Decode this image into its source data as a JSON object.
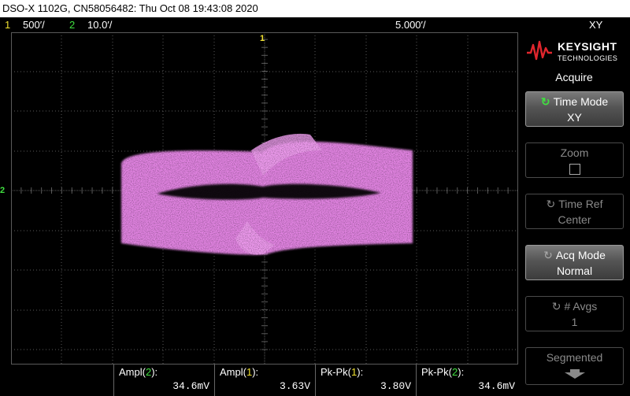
{
  "title": "DSO-X 1102G, CN58056482: Thu Oct 08 19:43:08 2020",
  "status": {
    "ch1_num": "1",
    "ch1_scale": "500′/",
    "ch2_num": "2",
    "ch2_scale": "10.0′/",
    "timebase": "5.000′/",
    "mode": "XY"
  },
  "markers": {
    "ch1": "1",
    "ch2": "2"
  },
  "brand": {
    "name": "KEYSIGHT",
    "sub": "TECHNOLOGIES"
  },
  "menu": {
    "title": "Acquire",
    "softkeys": [
      {
        "line1": "Time Mode",
        "line2": "XY"
      },
      {
        "line1": "Zoom",
        "line2": ""
      },
      {
        "line1": "Time Ref",
        "line2": "Center"
      },
      {
        "line1": "Acq Mode",
        "line2": "Normal"
      },
      {
        "line1": "# Avgs",
        "line2": "1"
      },
      {
        "line1": "Segmented",
        "line2": ""
      }
    ]
  },
  "measurements": [
    {
      "label_pre": "Ampl(",
      "ch": "2",
      "label_post": "):",
      "value": "34.6mV",
      "ch_color": "#40e040"
    },
    {
      "label_pre": "Ampl(",
      "ch": "1",
      "label_post": "):",
      "value": "3.63V",
      "ch_color": "#f0e030"
    },
    {
      "label_pre": "Pk-Pk(",
      "ch": "1",
      "label_post": "):",
      "value": "3.80V",
      "ch_color": "#f0e030"
    },
    {
      "label_pre": "Pk-Pk(",
      "ch": "2",
      "label_post": "):",
      "value": "34.6mV",
      "ch_color": "#40e040"
    }
  ],
  "colors": {
    "ch1": "#f0e030",
    "ch2": "#40e040",
    "trace": "#f08cf0",
    "grid": "#5a5a5a"
  }
}
